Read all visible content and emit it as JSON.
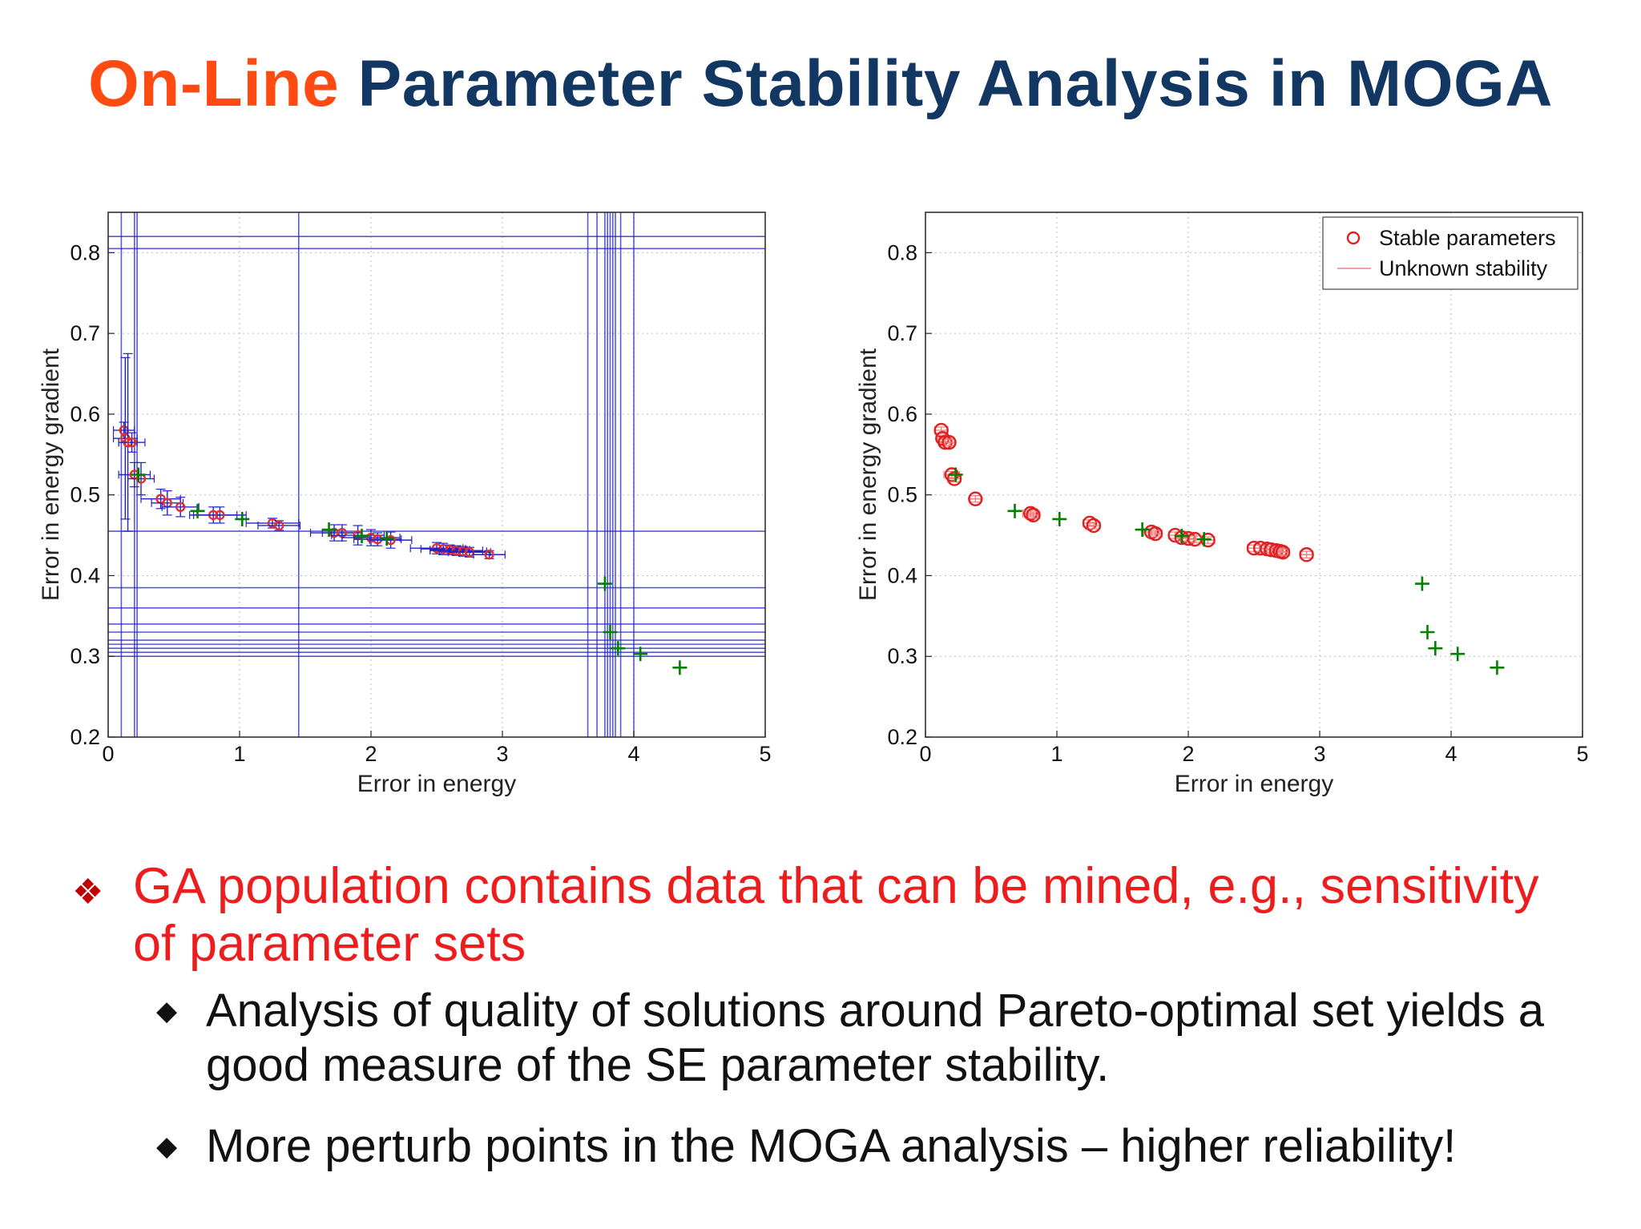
{
  "slide": {
    "title_accent": "On-Line",
    "title_rest": "Parameter Stability Analysis in MOGA",
    "bullet_main": "GA population contains data that can be mined, e.g., sensitivity of parameter sets",
    "sub_bullets": [
      "Analysis of quality of solutions around Pareto-optimal set yields a good measure of the SE parameter stability.",
      "More perturb points in the MOGA analysis – higher reliability!"
    ],
    "bullet_main_icon": "diamond-four-icon",
    "sub_bullet_icon": "diamond-icon"
  },
  "chart_data": [
    {
      "type": "scatter",
      "title": "",
      "xlabel": "Error in energy",
      "ylabel": "Error in energy gradient",
      "xlim": [
        0,
        5
      ],
      "ylim": [
        0.2,
        0.85
      ],
      "xticks": [
        "0",
        "1",
        "2",
        "3",
        "4",
        "5"
      ],
      "yticks": [
        "0.2",
        "0.3",
        "0.4",
        "0.5",
        "0.6",
        "0.7",
        "0.8"
      ],
      "grid": true,
      "legend": null,
      "colors": {
        "stable": "#e03030",
        "unknown": "#2222cc",
        "perturb": "#008000"
      },
      "series": [
        {
          "marker": "circle",
          "points": [
            [
              0.12,
              0.58
            ],
            [
              0.13,
              0.57
            ],
            [
              0.15,
              0.565
            ],
            [
              0.18,
              0.565
            ],
            [
              0.2,
              0.525
            ],
            [
              0.25,
              0.52
            ],
            [
              0.4,
              0.495
            ],
            [
              0.45,
              0.49
            ],
            [
              0.55,
              0.485
            ],
            [
              0.8,
              0.475
            ],
            [
              0.85,
              0.475
            ],
            [
              1.25,
              0.465
            ],
            [
              1.3,
              0.462
            ],
            [
              1.72,
              0.453
            ],
            [
              1.78,
              0.453
            ],
            [
              1.9,
              0.45
            ],
            [
              2.0,
              0.447
            ],
            [
              2.05,
              0.445
            ],
            [
              2.15,
              0.444
            ],
            [
              2.5,
              0.434
            ],
            [
              2.55,
              0.433
            ],
            [
              2.6,
              0.432
            ],
            [
              2.65,
              0.431
            ],
            [
              2.7,
              0.43
            ],
            [
              2.75,
              0.429
            ],
            [
              2.9,
              0.426
            ]
          ],
          "xerr": [
            0.08,
            0.09,
            0.07,
            0.1,
            0.12,
            0.1,
            0.15,
            0.12,
            0.14,
            0.18,
            0.2,
            0.2,
            0.16,
            0.18,
            0.15,
            0.2,
            0.22,
            0.18,
            0.16,
            0.2,
            0.17,
            0.15,
            0.2,
            0.18,
            0.16,
            0.12
          ],
          "yerr": [
            0.01,
            0.1,
            0.11,
            0.012,
            0.015,
            0.02,
            0.012,
            0.015,
            0.012,
            0.01,
            0.01,
            0.006,
            0.006,
            0.01,
            0.01,
            0.012,
            0.01,
            0.008,
            0.01,
            0.007,
            0.007,
            0.006,
            0.006,
            0.006,
            0.006,
            0.005
          ]
        },
        {
          "marker": "cross",
          "points": [
            [
              0.23,
              0.525
            ],
            [
              0.68,
              0.48
            ],
            [
              1.02,
              0.47
            ],
            [
              1.68,
              0.457
            ],
            [
              1.93,
              0.449
            ],
            [
              2.12,
              0.446
            ],
            [
              3.78,
              0.39
            ],
            [
              3.82,
              0.33
            ],
            [
              3.88,
              0.31
            ],
            [
              4.05,
              0.303
            ],
            [
              4.35,
              0.286
            ]
          ]
        }
      ],
      "wide_bars": {
        "vertical_x": [
          0.1,
          0.2,
          0.22,
          1.45,
          3.65,
          3.72,
          3.78,
          3.8,
          3.82,
          3.84,
          3.86,
          3.9,
          4.0
        ],
        "horizontal_y": [
          0.82,
          0.805,
          0.455,
          0.385,
          0.36,
          0.34,
          0.33,
          0.32,
          0.315,
          0.31,
          0.305,
          0.3
        ]
      }
    },
    {
      "type": "scatter",
      "title": "",
      "xlabel": "Error in energy",
      "ylabel": "Error in energy gradient",
      "xlim": [
        0,
        5
      ],
      "ylim": [
        0.2,
        0.85
      ],
      "xticks": [
        "0",
        "1",
        "2",
        "3",
        "4",
        "5"
      ],
      "yticks": [
        "0.2",
        "0.3",
        "0.4",
        "0.5",
        "0.6",
        "0.7",
        "0.8"
      ],
      "grid": true,
      "legend": "top-right",
      "legend_entries": [
        "Stable parameters",
        "Unknown stability"
      ],
      "colors": {
        "stable": "#e02020",
        "unknown": "#f08080",
        "perturb": "#008000"
      },
      "series": [
        {
          "name": "Stable parameters",
          "marker": "circle",
          "points": [
            [
              0.12,
              0.58
            ],
            [
              0.13,
              0.57
            ],
            [
              0.15,
              0.565
            ],
            [
              0.18,
              0.565
            ],
            [
              0.2,
              0.525
            ],
            [
              0.22,
              0.52
            ],
            [
              0.38,
              0.495
            ],
            [
              0.8,
              0.477
            ],
            [
              0.82,
              0.475
            ],
            [
              1.25,
              0.465
            ],
            [
              1.28,
              0.462
            ],
            [
              1.72,
              0.454
            ],
            [
              1.75,
              0.452
            ],
            [
              1.9,
              0.45
            ],
            [
              1.95,
              0.447
            ],
            [
              2.0,
              0.446
            ],
            [
              2.05,
              0.445
            ],
            [
              2.15,
              0.444
            ],
            [
              2.5,
              0.434
            ],
            [
              2.55,
              0.434
            ],
            [
              2.6,
              0.433
            ],
            [
              2.63,
              0.432
            ],
            [
              2.67,
              0.431
            ],
            [
              2.7,
              0.43
            ],
            [
              2.72,
              0.429
            ],
            [
              2.9,
              0.426
            ]
          ],
          "xerr": [
            0.05,
            0.04,
            0.05,
            0.04,
            0.06,
            0.05,
            0.04,
            0.06,
            0.05,
            0.05,
            0.05,
            0.06,
            0.05,
            0.05,
            0.05,
            0.06,
            0.05,
            0.05,
            0.05,
            0.05,
            0.05,
            0.05,
            0.05,
            0.05,
            0.05,
            0.05
          ],
          "yerr": [
            0.004,
            0.004,
            0.004,
            0.004,
            0.004,
            0.004,
            0.004,
            0.004,
            0.004,
            0.004,
            0.004,
            0.004,
            0.004,
            0.004,
            0.004,
            0.004,
            0.004,
            0.004,
            0.004,
            0.004,
            0.004,
            0.004,
            0.004,
            0.004,
            0.004,
            0.004
          ]
        },
        {
          "marker": "cross",
          "points": [
            [
              0.23,
              0.525
            ],
            [
              0.68,
              0.48
            ],
            [
              1.02,
              0.47
            ],
            [
              1.65,
              0.457
            ],
            [
              1.95,
              0.449
            ],
            [
              2.12,
              0.445
            ],
            [
              3.78,
              0.39
            ],
            [
              3.82,
              0.33
            ],
            [
              3.88,
              0.31
            ],
            [
              4.05,
              0.303
            ],
            [
              4.35,
              0.286
            ]
          ]
        }
      ]
    }
  ]
}
